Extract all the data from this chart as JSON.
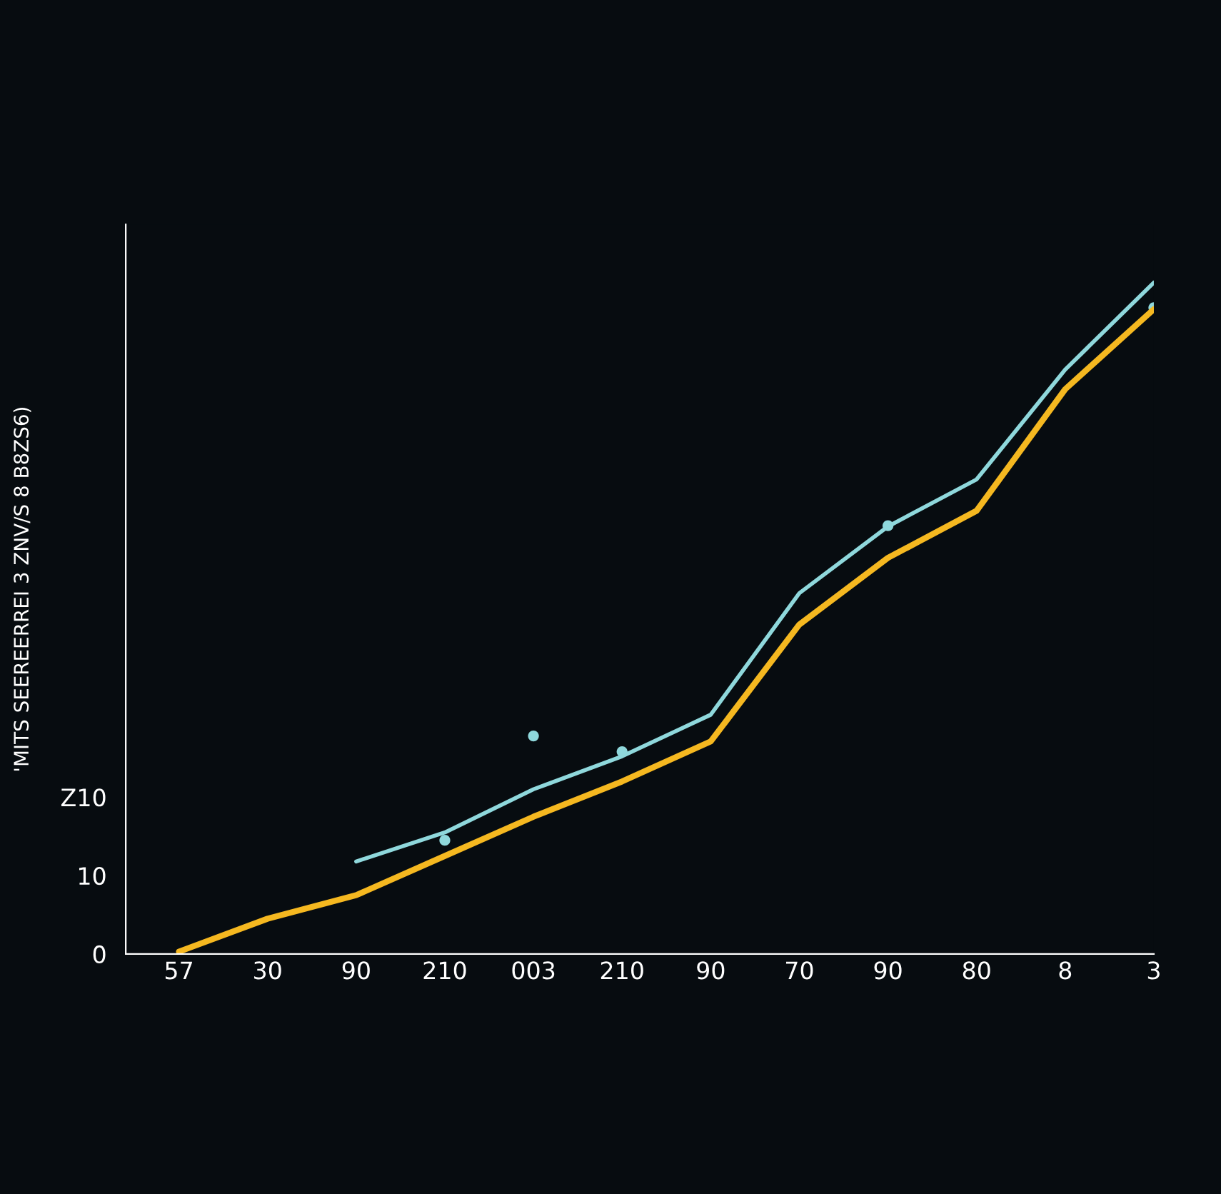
{
  "chart_data": {
    "type": "line",
    "ylabel": "'MITS SEEREERREI 3 ZNV/S 8 B8ZS6)",
    "ylim": [
      0,
      93
    ],
    "categories": [
      "57",
      "30",
      "90",
      "210",
      "003",
      "210",
      "90",
      "70",
      "90",
      "80",
      "8",
      "3"
    ],
    "yticks": [
      0,
      10,
      {
        "value": 20,
        "label": "Z10"
      }
    ],
    "series": [
      {
        "color": "#f5b820",
        "values": [
          0.3,
          4.5,
          7.5,
          12.5,
          17.5,
          22,
          27.1,
          42,
          50.5,
          56.5,
          72,
          82.2
        ]
      },
      {
        "color": "#8fd8dc",
        "values": [
          null,
          null,
          11.8,
          15.5,
          21,
          25.2,
          30.5,
          46,
          54.5,
          60.5,
          74.5,
          85.6
        ]
      },
      {
        "type": "scatter",
        "color": "#8fd8dc",
        "marker": "circle",
        "values": [
          null,
          null,
          null,
          14.5,
          27.8,
          25.8,
          null,
          null,
          54.6,
          null,
          null,
          82.4
        ]
      }
    ]
  }
}
